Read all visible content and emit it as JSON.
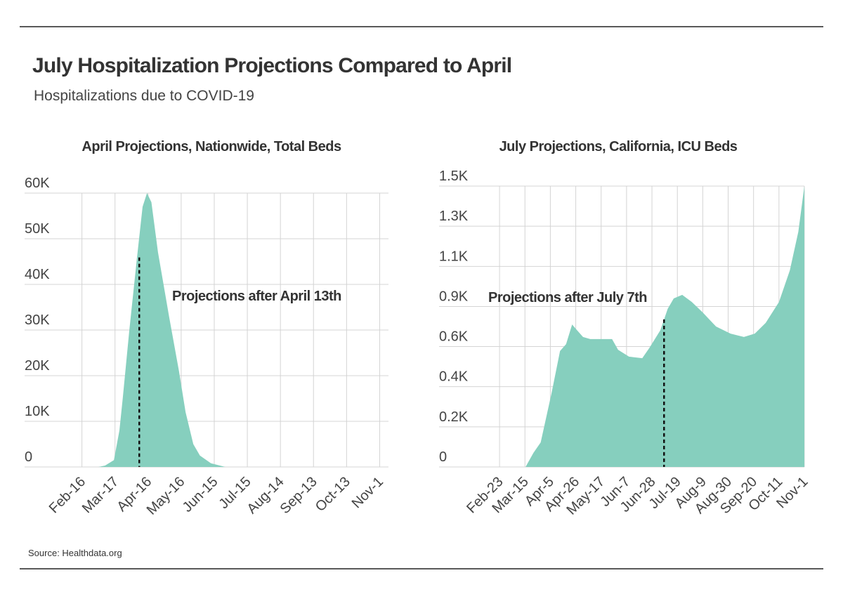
{
  "title": "July Hospitalization Projections Compared to April",
  "subtitle": "Hospitalizations due to COVID-19",
  "source": "Source: Healthdata.org",
  "chart_data": [
    {
      "type": "area",
      "title": "April Projections, Nationwide, Total Beds",
      "color": "#86cfbe",
      "x": [
        15,
        21,
        29,
        34,
        37,
        43,
        50,
        55,
        59,
        63,
        69,
        79,
        88,
        94,
        101,
        107,
        117,
        130
      ],
      "values": [
        0,
        300,
        1500,
        8000,
        15000,
        30000,
        46000,
        57000,
        60000,
        58000,
        47000,
        33000,
        21000,
        12000,
        5000,
        2500,
        800,
        0
      ],
      "xlim": [
        -52,
        278
      ],
      "xticks": [
        {
          "value": 0,
          "label": "Feb-16"
        },
        {
          "value": 30,
          "label": "Mar-17"
        },
        {
          "value": 60,
          "label": "Apr-16"
        },
        {
          "value": 90,
          "label": "May-16"
        },
        {
          "value": 120,
          "label": "Jun-15"
        },
        {
          "value": 150,
          "label": "Jul-15"
        },
        {
          "value": 180,
          "label": "Aug-14"
        },
        {
          "value": 210,
          "label": "Sep-13"
        },
        {
          "value": 240,
          "label": "Oct-13"
        },
        {
          "value": 270,
          "label": "Nov-1"
        }
      ],
      "ylim": [
        0,
        60000
      ],
      "yticks": [
        0,
        {
          "value": 10000,
          "label": "10K"
        },
        {
          "value": 20000,
          "label": "20K"
        },
        {
          "value": 30000,
          "label": "30K"
        },
        {
          "value": 40000,
          "label": "40K"
        },
        {
          "value": 50000,
          "label": "50K"
        },
        {
          "value": 60000,
          "label": "60K"
        }
      ],
      "marker": {
        "x": 52,
        "y": 45900
      },
      "annotation": "Projections after April 13th",
      "grid": true
    },
    {
      "type": "area",
      "title": "July Projections, California, ICU Beds",
      "color": "#86cfbe",
      "x": [
        21.5,
        28,
        34,
        43,
        50,
        55,
        60,
        64,
        69,
        75,
        93,
        98,
        107,
        118,
        124,
        133,
        139,
        144,
        151,
        159,
        168,
        179,
        191,
        202,
        211,
        220,
        231,
        240,
        247,
        252
      ],
      "values": [
        0,
        75,
        131,
        394,
        619,
        656,
        761,
        731,
        694,
        683,
        683,
        626,
        589,
        581,
        637,
        731,
        844,
        900,
        919,
        881,
        825,
        750,
        712,
        694,
        712,
        769,
        881,
        1050,
        1256,
        1500
      ],
      "xlim": [
        -50,
        252
      ],
      "xticks": [
        {
          "value": 0,
          "label": "Feb-23"
        },
        {
          "value": 21,
          "label": "Mar-15"
        },
        {
          "value": 42,
          "label": "Apr-5"
        },
        {
          "value": 63,
          "label": "Apr-26"
        },
        {
          "value": 84,
          "label": "May-17"
        },
        {
          "value": 105,
          "label": "Jun-7"
        },
        {
          "value": 126,
          "label": "Jun-28"
        },
        {
          "value": 147,
          "label": "Jul-19"
        },
        {
          "value": 168,
          "label": "Aug-9"
        },
        {
          "value": 189,
          "label": "Aug-30"
        },
        {
          "value": 210,
          "label": "Sep-20"
        },
        {
          "value": 231,
          "label": "Oct-11"
        },
        {
          "value": 252,
          "label": "Nov-1"
        }
      ],
      "ylim": [
        0,
        1500
      ],
      "yticks": [
        0,
        {
          "value": 214,
          "label": "0.2K"
        },
        {
          "value": 429,
          "label": "0.4K"
        },
        {
          "value": 643,
          "label": "0.6K"
        },
        {
          "value": 857,
          "label": "0.9K"
        },
        {
          "value": 1071,
          "label": "1.1K"
        },
        {
          "value": 1286,
          "label": "1.3K"
        },
        {
          "value": 1500,
          "label": "1.5K"
        }
      ],
      "marker": {
        "x": 136,
        "y": 788
      },
      "annotation": "Projections after July 7th",
      "grid": true
    }
  ]
}
